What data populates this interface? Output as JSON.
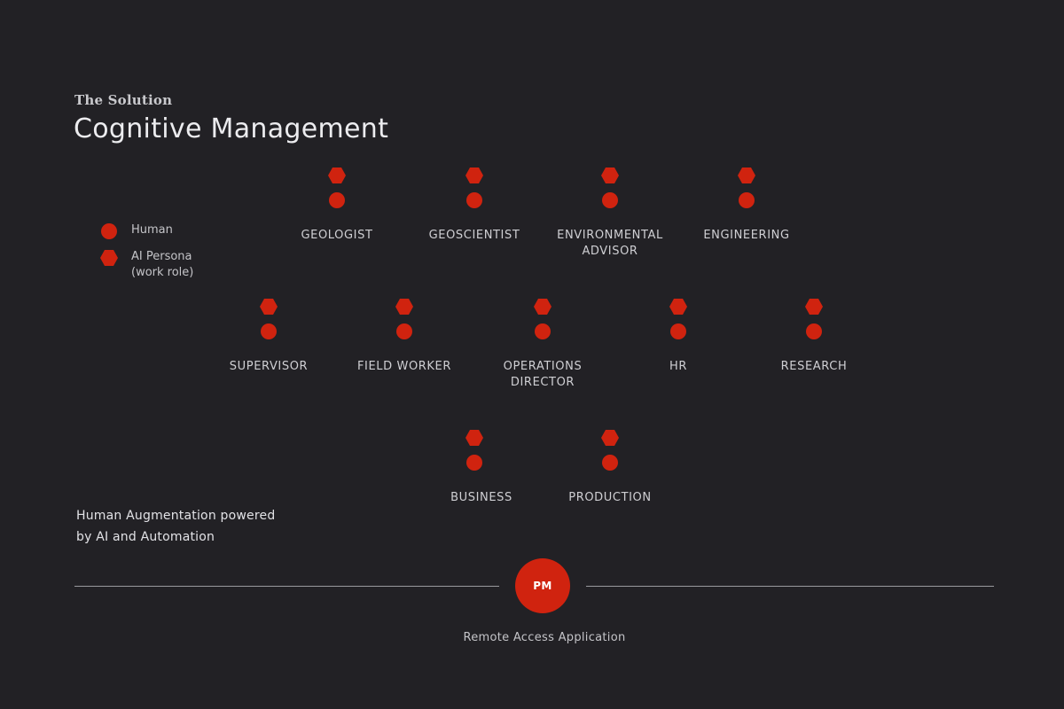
{
  "header": {
    "eyebrow": "The Solution",
    "title": "Cognitive Management"
  },
  "legend": {
    "human": "Human",
    "ai_persona_line1": "AI Persona",
    "ai_persona_line2": "(work role)"
  },
  "roles": {
    "geologist": "GEOLOGIST",
    "geoscientist": "GEOSCIENTIST",
    "environmental_advisor_line1": "ENVIRONMENTAL",
    "environmental_advisor_line2": "ADVISOR",
    "engineering": "ENGINEERING",
    "supervisor": "SUPERVISOR",
    "field_worker": "FIELD WORKER",
    "operations_director_line1": "OPERATIONS",
    "operations_director_line2": "DIRECTOR",
    "hr": "HR",
    "research": "RESEARCH",
    "business": "BUSINESS",
    "production": "PRODUCTION"
  },
  "augmentation": {
    "line1": "Human Augmentation powered",
    "line2": "by AI and Automation"
  },
  "hub": {
    "label": "PM",
    "caption": "Remote Access Application"
  },
  "colors": {
    "accent": "#d0230f",
    "background": "#222125"
  }
}
